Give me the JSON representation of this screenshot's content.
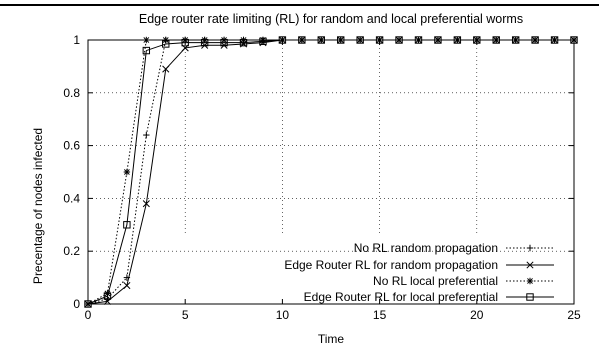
{
  "chart_data": {
    "type": "line",
    "title": "Edge router rate limiting (RL) for random and local preferential worms",
    "xlabel": "Time",
    "ylabel": "Precentage of nodes infected",
    "xlim": [
      0,
      25
    ],
    "ylim": [
      0,
      1
    ],
    "xticks": [
      "0",
      "5",
      "10",
      "15",
      "20",
      "25"
    ],
    "yticks": [
      "0",
      "0.2",
      "0.4",
      "0.6",
      "0.8",
      "1"
    ],
    "grid": "dotted",
    "legend_position": "bottom-right",
    "series": [
      {
        "name": "No RL random propagation",
        "line": "dotted",
        "marker": "plus",
        "x": [
          0,
          1,
          2,
          3,
          4,
          5,
          6,
          7,
          8,
          9,
          10,
          11,
          12,
          13,
          14,
          15,
          16,
          17,
          18,
          19,
          20,
          21,
          22,
          23,
          24,
          25
        ],
        "y": [
          0,
          0.02,
          0.1,
          0.64,
          1,
          1,
          1,
          1,
          1,
          1,
          1,
          1,
          1,
          1,
          1,
          1,
          1,
          1,
          1,
          1,
          1,
          1,
          1,
          1,
          1,
          1
        ]
      },
      {
        "name": "Edge Router RL for random propagation",
        "line": "solid",
        "marker": "cross",
        "x": [
          0,
          1,
          2,
          3,
          4,
          5,
          6,
          7,
          8,
          9,
          10,
          11,
          12,
          13,
          14,
          15,
          16,
          17,
          18,
          19,
          20,
          21,
          22,
          23,
          24,
          25
        ],
        "y": [
          0,
          0.01,
          0.07,
          0.38,
          0.89,
          0.97,
          0.98,
          0.98,
          0.985,
          0.99,
          1,
          1,
          1,
          1,
          1,
          1,
          1,
          1,
          1,
          1,
          1,
          1,
          1,
          1,
          1,
          1
        ]
      },
      {
        "name": "No RL local preferential",
        "line": "dotted",
        "marker": "star",
        "x": [
          0,
          1,
          2,
          3,
          4,
          5,
          6,
          7,
          8,
          9,
          10,
          11,
          12,
          13,
          14,
          15,
          16,
          17,
          18,
          19,
          20,
          21,
          22,
          23,
          24,
          25
        ],
        "y": [
          0,
          0.04,
          0.5,
          1,
          1,
          1,
          1,
          1,
          1,
          1,
          1,
          1,
          1,
          1,
          1,
          1,
          1,
          1,
          1,
          1,
          1,
          1,
          1,
          1,
          1,
          1
        ]
      },
      {
        "name": "Edge Router RL for local preferential",
        "line": "solid",
        "marker": "square",
        "x": [
          0,
          1,
          2,
          3,
          4,
          5,
          6,
          7,
          8,
          9,
          10,
          11,
          12,
          13,
          14,
          15,
          16,
          17,
          18,
          19,
          20,
          21,
          22,
          23,
          24,
          25
        ],
        "y": [
          0,
          0.03,
          0.3,
          0.96,
          0.985,
          0.99,
          0.99,
          0.99,
          0.99,
          0.995,
          1,
          1,
          1,
          1,
          1,
          1,
          1,
          1,
          1,
          1,
          1,
          1,
          1,
          1,
          1,
          1
        ]
      }
    ]
  }
}
